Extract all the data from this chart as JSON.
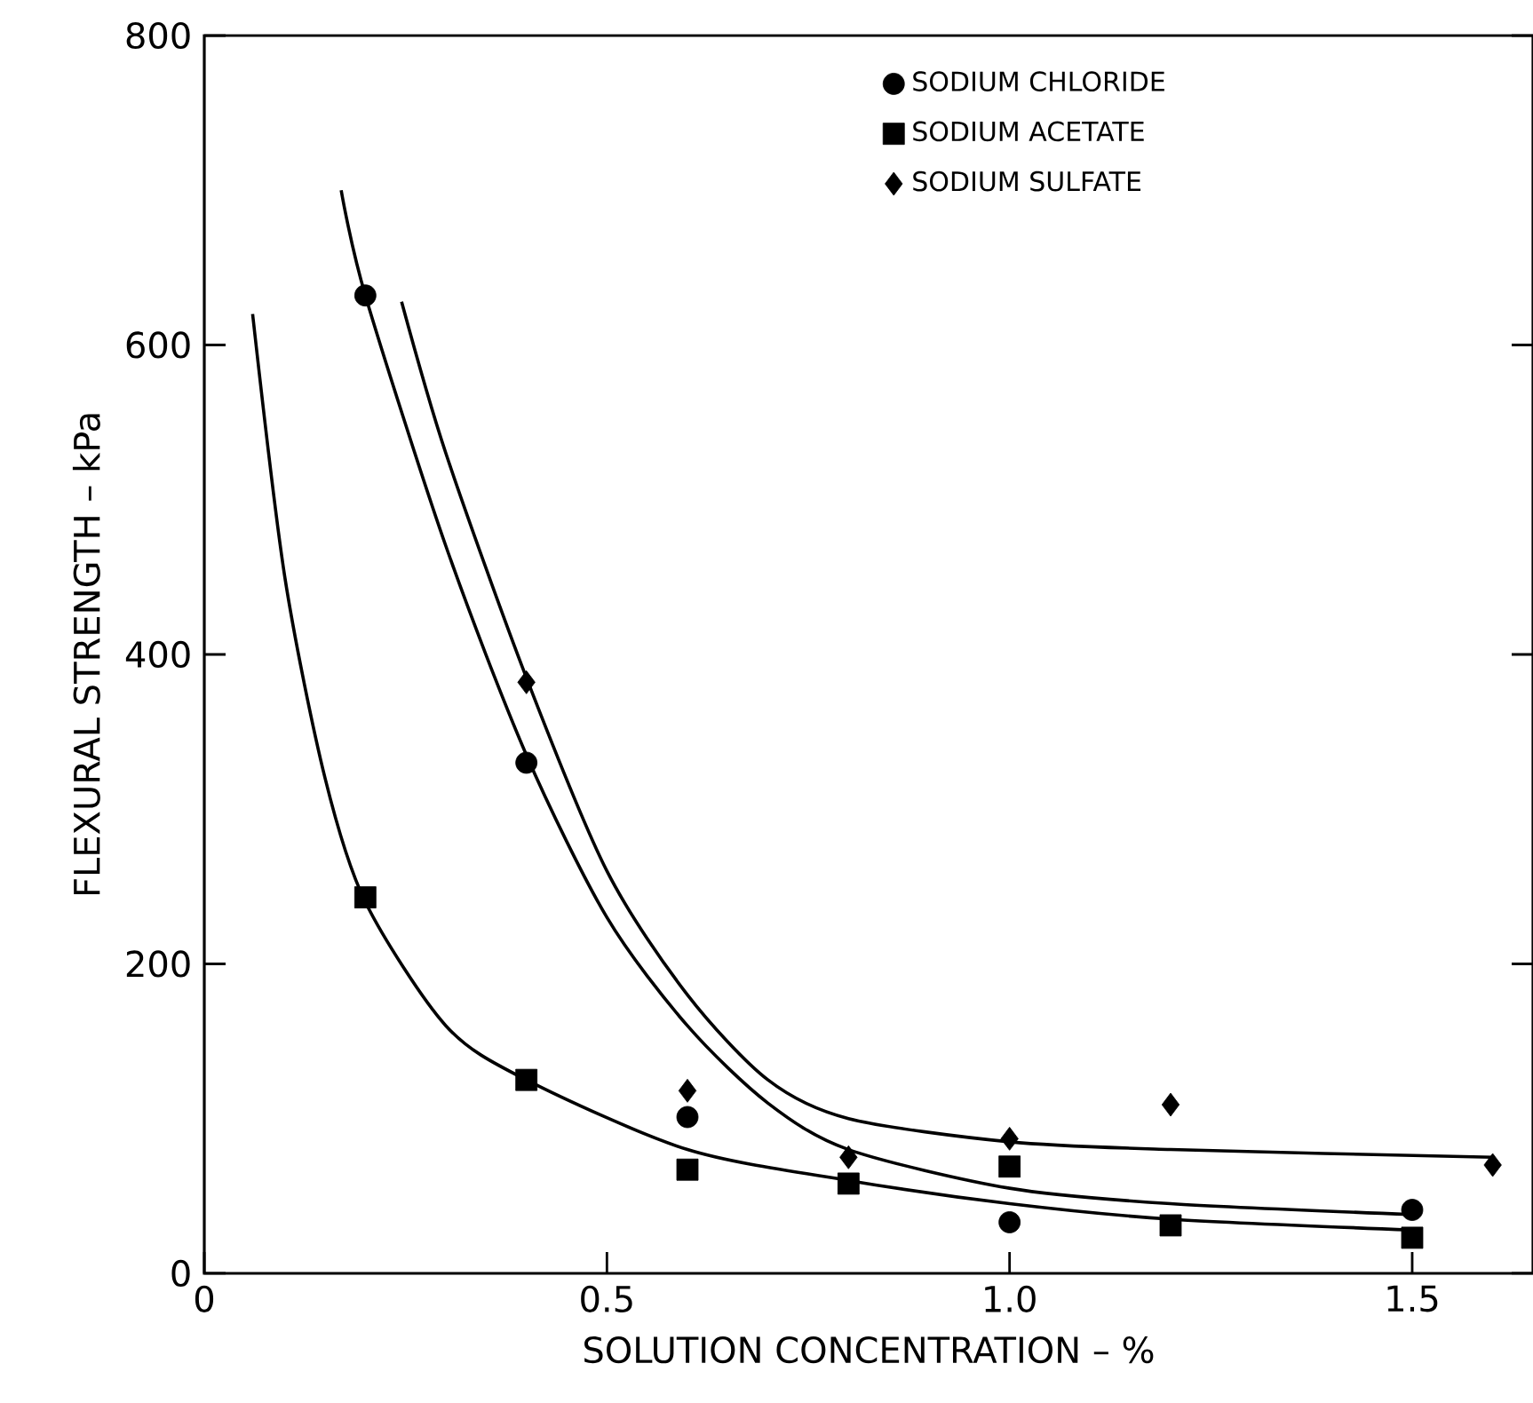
{
  "chart_data": {
    "type": "scatter",
    "xlabel": "SOLUTION  CONCENTRATION – %",
    "ylabel": "FLEXURAL STRENGTH – kPa",
    "xlim": [
      0,
      1.65
    ],
    "ylim": [
      0,
      800
    ],
    "xticks": [
      0,
      0.5,
      {
        "value": 1,
        "label": "1.0"
      },
      1.5
    ],
    "yticks": [
      0,
      200,
      400,
      600,
      800
    ],
    "legend": "top",
    "grid": false,
    "series": [
      {
        "name": "SODIUM CHLORIDE",
        "color": "#000000",
        "marker": "circle",
        "x": [
          0.2,
          0.4,
          0.6,
          0.8,
          1.0,
          1.5
        ],
        "values": [
          632,
          330,
          101,
          null,
          33,
          41
        ]
      },
      {
        "name": "SODIUM ACETATE",
        "color": "#000000",
        "marker": "square",
        "x": [
          0.2,
          0.4,
          0.6,
          0.8,
          1.0,
          1.2,
          1.5
        ],
        "values": [
          243,
          125,
          67,
          58,
          69,
          31,
          23
        ]
      },
      {
        "name": "SODIUM SULFATE",
        "color": "#000000",
        "marker": "diamond",
        "x": [
          0.4,
          0.6,
          0.8,
          1.0,
          1.2,
          1.6
        ],
        "values": [
          382,
          118,
          75,
          87,
          109,
          70
        ]
      },
      {
        "type": "line",
        "color": "#000000",
        "marker": "none",
        "x": [
          0.17,
          0.2,
          0.3,
          0.4,
          0.5,
          0.6,
          0.7,
          0.8,
          1.0,
          1.2,
          1.5
        ],
        "values": [
          700,
          632,
          470,
          335,
          230,
          160,
          110,
          80,
          55,
          45,
          38
        ]
      },
      {
        "type": "line",
        "color": "#000000",
        "marker": "none",
        "x": [
          0.245,
          0.3,
          0.4,
          0.5,
          0.6,
          0.7,
          0.8,
          1.0,
          1.2,
          1.6
        ],
        "values": [
          628,
          530,
          385,
          260,
          180,
          125,
          100,
          85,
          80,
          75
        ]
      },
      {
        "type": "line",
        "color": "#000000",
        "marker": "none",
        "x": [
          0.06,
          0.1,
          0.15,
          0.2,
          0.3,
          0.4,
          0.6,
          0.8,
          1.0,
          1.2,
          1.5
        ],
        "values": [
          620,
          450,
          320,
          240,
          160,
          125,
          80,
          60,
          45,
          35,
          28
        ]
      }
    ]
  }
}
